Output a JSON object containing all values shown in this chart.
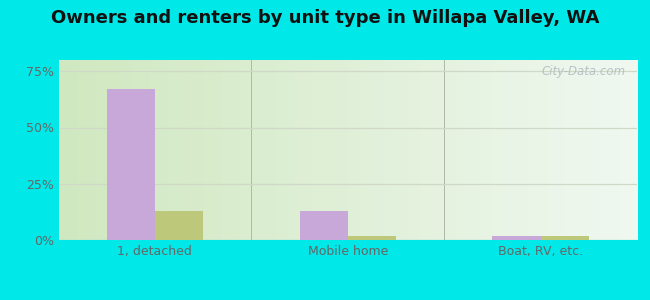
{
  "title": "Owners and renters by unit type in Willapa Valley, WA",
  "categories": [
    "1, detached",
    "Mobile home",
    "Boat, RV, etc."
  ],
  "owner_values": [
    67.0,
    13.0,
    2.0
  ],
  "renter_values": [
    13.0,
    2.0,
    2.0
  ],
  "owner_color": "#c8a8d8",
  "renter_color": "#bec87a",
  "yticks": [
    0,
    25,
    50,
    75
  ],
  "ytick_labels": [
    "0%",
    "25%",
    "50%",
    "75%"
  ],
  "ylim": [
    0,
    80
  ],
  "bar_width": 0.25,
  "title_fontsize": 13,
  "tick_fontsize": 9,
  "legend_fontsize": 10,
  "watermark": "City-Data.com",
  "figure_bg": "#00e8e8",
  "grid_color": "#d0d8c8"
}
